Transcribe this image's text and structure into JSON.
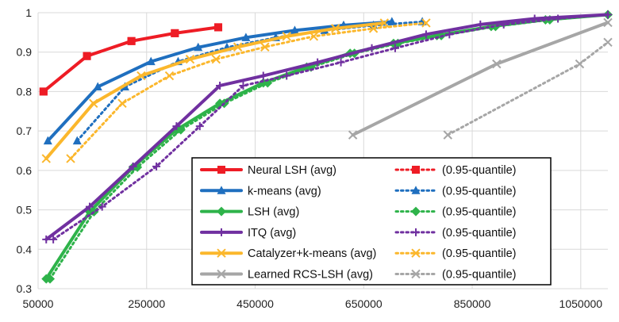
{
  "chart_data": {
    "type": "line",
    "title": "",
    "xlabel": "",
    "ylabel": "",
    "xlim": [
      50000,
      1100000
    ],
    "ylim": [
      0.3,
      1.0
    ],
    "x_ticks": [
      50000,
      250000,
      450000,
      650000,
      850000,
      1050000
    ],
    "x_tick_labels": [
      "50000",
      "250000",
      "450000",
      "650000",
      "850000",
      "1050000"
    ],
    "y_ticks": [
      0.3,
      0.4,
      0.5,
      0.6,
      0.7,
      0.8,
      0.9,
      1.0
    ],
    "y_tick_labels": [
      "0.3",
      "0.4",
      "0.5",
      "0.6",
      "0.7",
      "0.8",
      "0.9",
      "1"
    ],
    "grid": true,
    "legend_position": "bottom-right",
    "series": [
      {
        "name": "Neural LSH (avg)",
        "color": "#ee1c25",
        "style": "solid",
        "marker": "square",
        "x": [
          60000,
          140000,
          222000,
          302000,
          382000
        ],
        "y": [
          0.8,
          0.89,
          0.928,
          0.948,
          0.963
        ]
      },
      {
        "name": "(0.95-quantile)",
        "color": "#ee1c25",
        "style": "dotted",
        "marker": "square",
        "x": [
          60000,
          140000,
          222000,
          302000,
          382000
        ],
        "y": [
          0.8,
          0.89,
          0.928,
          0.948,
          0.963
        ]
      },
      {
        "name": "k-means (avg)",
        "color": "#1f6fbf",
        "style": "solid",
        "marker": "triangle",
        "x": [
          68000,
          160000,
          258000,
          345000,
          433000,
          523000,
          613000,
          702000
        ],
        "y": [
          0.675,
          0.812,
          0.876,
          0.912,
          0.937,
          0.955,
          0.968,
          0.977
        ]
      },
      {
        "name": "(0.95-quantile)",
        "color": "#1f6fbf",
        "style": "dotted",
        "marker": "triangle",
        "x": [
          122000,
          210000,
          308000,
          398000,
          488000,
          578000,
          668000,
          758000
        ],
        "y": [
          0.675,
          0.812,
          0.876,
          0.912,
          0.937,
          0.955,
          0.968,
          0.977
        ]
      },
      {
        "name": "LSH (avg)",
        "color": "#2eb34a",
        "style": "solid",
        "marker": "diamond",
        "x": [
          65000,
          145000,
          225000,
          305000,
          385000,
          465000,
          545000,
          625000,
          705000,
          785000,
          885000,
          985000,
          1100000
        ],
        "y": [
          0.325,
          0.495,
          0.608,
          0.703,
          0.77,
          0.822,
          0.862,
          0.897,
          0.922,
          0.942,
          0.965,
          0.982,
          0.995
        ]
      },
      {
        "name": "(0.95-quantile)",
        "color": "#2eb34a",
        "style": "dotted",
        "marker": "diamond",
        "x": [
          72000,
          153000,
          233000,
          313000,
          393000,
          473000,
          553000,
          633000,
          713000,
          793000,
          893000,
          993000,
          1100000
        ],
        "y": [
          0.325,
          0.495,
          0.608,
          0.703,
          0.77,
          0.822,
          0.862,
          0.897,
          0.922,
          0.942,
          0.965,
          0.982,
          0.995
        ]
      },
      {
        "name": "ITQ (avg)",
        "color": "#7030a0",
        "style": "solid",
        "marker": "plus",
        "x": [
          65000,
          145000,
          225000,
          305000,
          385000,
          465000,
          565000,
          665000,
          765000,
          865000,
          965000,
          1100000
        ],
        "y": [
          0.425,
          0.508,
          0.61,
          0.712,
          0.815,
          0.84,
          0.874,
          0.91,
          0.945,
          0.97,
          0.985,
          0.995
        ]
      },
      {
        "name": "(0.95-quantile)",
        "color": "#7030a0",
        "style": "dotted",
        "marker": "plus",
        "x": [
          78000,
          168000,
          268000,
          348000,
          428000,
          508000,
          608000,
          708000,
          808000,
          908000,
          1008000,
          1100000
        ],
        "y": [
          0.425,
          0.508,
          0.61,
          0.712,
          0.815,
          0.84,
          0.874,
          0.91,
          0.945,
          0.97,
          0.985,
          0.995
        ]
      },
      {
        "name": "Catalyzer+k-means (avg)",
        "color": "#fbb72c",
        "style": "solid",
        "marker": "cross",
        "x": [
          65000,
          152000,
          240000,
          330000,
          418000,
          508000,
          598000,
          688000
        ],
        "y": [
          0.63,
          0.77,
          0.84,
          0.882,
          0.913,
          0.94,
          0.96,
          0.974
        ]
      },
      {
        "name": "(0.95-quantile)",
        "color": "#fbb72c",
        "style": "dotted",
        "marker": "cross",
        "x": [
          110000,
          205000,
          292000,
          378000,
          468000,
          558000,
          668000,
          765000
        ],
        "y": [
          0.63,
          0.77,
          0.84,
          0.882,
          0.913,
          0.94,
          0.96,
          0.974
        ]
      },
      {
        "name": "Learned RCS-LSH (avg)",
        "color": "#a6a6a6",
        "style": "solid",
        "marker": "cross",
        "x": [
          630000,
          895000,
          1100000
        ],
        "y": [
          0.69,
          0.87,
          0.975
        ]
      },
      {
        "name": "(0.95-quantile)",
        "color": "#a6a6a6",
        "style": "dotted",
        "marker": "cross",
        "x": [
          805000,
          1048000,
          1100000
        ],
        "y": [
          0.69,
          0.87,
          0.925
        ]
      }
    ]
  }
}
